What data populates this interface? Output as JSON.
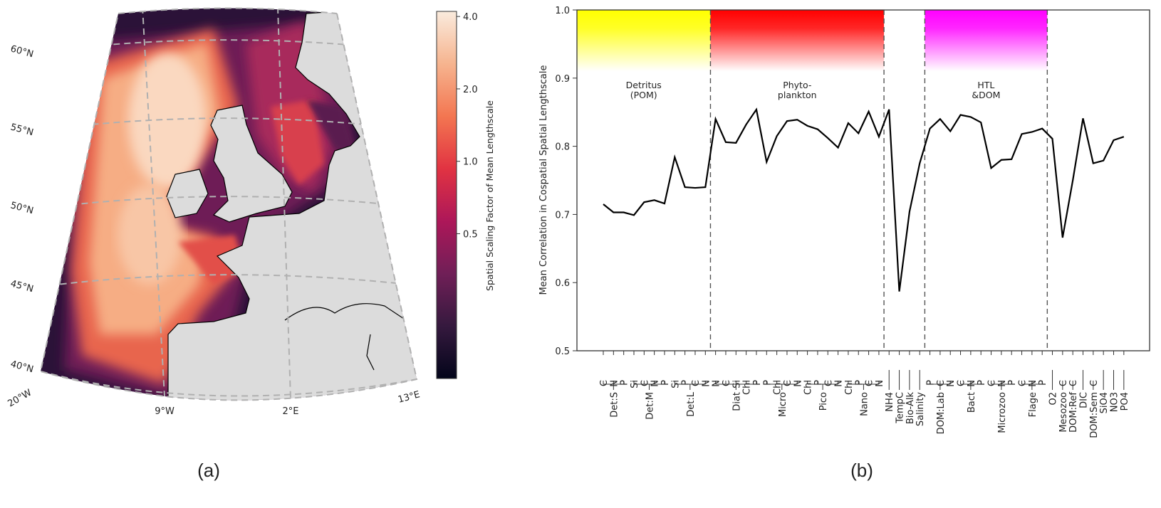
{
  "panel_a": {
    "caption": "(a)",
    "lat_labels": [
      "60°N",
      "55°N",
      "50°N",
      "45°N",
      "40°N"
    ],
    "lon_labels": [
      "20°W",
      "9°W",
      "2°E",
      "13°E"
    ],
    "colorbar": {
      "label": "Spatial Scaling Factor of Mean Lengthscale",
      "ticks": [
        "4.0",
        "2.0",
        "1.0",
        "0.5"
      ],
      "tick_values": [
        4.0,
        2.0,
        1.0,
        0.5
      ],
      "range": [
        0.125,
        4.2
      ],
      "colormap": [
        "#03051a",
        "#35193e",
        "#701f57",
        "#ad1759",
        "#e13342",
        "#f37651",
        "#f6b48f",
        "#faebdd"
      ]
    },
    "land_color": "#dcdcdc"
  },
  "panel_b": {
    "caption": "(b)"
  },
  "chart_data": {
    "type": "line",
    "ylabel": "Mean Correlation in Cospatial Spatial Lengthscale",
    "ylim": [
      0.5,
      1.0
    ],
    "yticks": [
      "0.5",
      "0.6",
      "0.7",
      "0.8",
      "0.9",
      "1.0"
    ],
    "grid": false,
    "groups": [
      {
        "name": "Det:S",
        "items": [
          "C",
          "N",
          "P"
        ]
      },
      {
        "name": "Det:M",
        "items": [
          "Si",
          "C",
          "N",
          "P"
        ]
      },
      {
        "name": "Det:L",
        "items": [
          "Si",
          "P",
          "C",
          "N"
        ]
      },
      {
        "name": "Diat",
        "items": [
          "N",
          "C",
          "Si",
          "Chl",
          "P"
        ]
      },
      {
        "name": "Micro",
        "items": [
          "P",
          "Chl",
          "C",
          "N"
        ]
      },
      {
        "name": "Pico",
        "items": [
          "Chl",
          "P",
          "C",
          "N"
        ]
      },
      {
        "name": "Nano",
        "items": [
          "Chl",
          "P",
          "C",
          "N"
        ]
      },
      {
        "name": "NH4",
        "items": []
      },
      {
        "name": "TempC",
        "items": []
      },
      {
        "name": "Bio-Alk",
        "items": []
      },
      {
        "name": "Salinity",
        "items": []
      },
      {
        "name": "DOM:Lab",
        "items": [
          "P",
          "C",
          "N"
        ]
      },
      {
        "name": "Bact",
        "items": [
          "C",
          "N",
          "P"
        ]
      },
      {
        "name": "Microzoo",
        "items": [
          "C",
          "N",
          "P"
        ]
      },
      {
        "name": "Flage",
        "items": [
          "C",
          "N",
          "P"
        ]
      },
      {
        "name": "O2",
        "items": []
      },
      {
        "name": "Mesozoo",
        "items": [
          "C"
        ]
      },
      {
        "name": "DOM:Ref",
        "items": [
          "C"
        ]
      },
      {
        "name": "DIC",
        "items": []
      },
      {
        "name": "DOM:Sem",
        "items": [
          "C"
        ]
      },
      {
        "name": "SiO4",
        "items": []
      },
      {
        "name": "NO3",
        "items": []
      },
      {
        "name": "PO4",
        "items": []
      }
    ],
    "values": [
      0.715,
      0.703,
      0.703,
      0.699,
      0.718,
      0.721,
      0.716,
      0.784,
      0.74,
      0.739,
      0.74,
      0.84,
      0.806,
      0.805,
      0.832,
      0.854,
      0.777,
      0.815,
      0.837,
      0.839,
      0.83,
      0.825,
      0.812,
      0.798,
      0.834,
      0.819,
      0.851,
      0.814,
      0.854,
      0.587,
      0.704,
      0.775,
      0.826,
      0.84,
      0.822,
      0.846,
      0.843,
      0.835,
      0.768,
      0.78,
      0.781,
      0.818,
      0.821,
      0.826,
      0.811,
      0.666,
      0.75,
      0.841,
      0.775,
      0.779,
      0.809,
      0.814
    ],
    "dividers_after_index": [
      10,
      27,
      31,
      43
    ],
    "bands": [
      {
        "label_lines": [
          "Detritus",
          "(POM)"
        ],
        "from_index": -1,
        "to_index": 10,
        "color": "#ffff00"
      },
      {
        "label_lines": [
          "Phyto-",
          "plankton"
        ],
        "from_index": 10,
        "to_index": 27,
        "color": "#ff0000"
      },
      {
        "label_lines": [
          "HTL",
          "&DOM"
        ],
        "from_index": 31,
        "to_index": 43,
        "color": "#ff00ff"
      }
    ],
    "band_bottom_value": 0.91,
    "line_color": "#000000"
  }
}
